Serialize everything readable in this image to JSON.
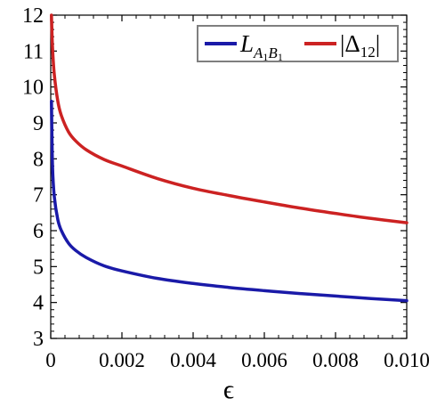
{
  "chart_data": {
    "type": "line",
    "xlabel": "ϵ",
    "ylabel": "",
    "xlim": [
      0,
      0.01
    ],
    "ylim": [
      3,
      12
    ],
    "x_ticks": [
      0,
      0.002,
      0.004,
      0.006,
      0.008,
      0.01
    ],
    "x_tick_labels": [
      "0",
      "0.002",
      "0.004",
      "0.006",
      "0.008",
      "0.010"
    ],
    "y_ticks": [
      3,
      4,
      5,
      6,
      7,
      8,
      9,
      10,
      11,
      12
    ],
    "y_tick_labels": [
      "3",
      "4",
      "5",
      "6",
      "7",
      "8",
      "9",
      "10",
      "11",
      "12"
    ],
    "grid": false,
    "legend_position": "top-right",
    "series": [
      {
        "name": "L_{A_1 B_1}",
        "color": "#1a1aa8",
        "x": [
          2e-05,
          5e-05,
          0.0001,
          0.0002,
          0.0003,
          0.0005,
          0.0007,
          0.001,
          0.0015,
          0.002,
          0.003,
          0.004,
          0.005,
          0.006,
          0.007,
          0.008,
          0.009,
          0.01
        ],
        "y": [
          9.6,
          7.8,
          6.95,
          6.3,
          6.0,
          5.65,
          5.45,
          5.25,
          5.02,
          4.88,
          4.67,
          4.53,
          4.42,
          4.33,
          4.25,
          4.18,
          4.11,
          4.05
        ]
      },
      {
        "name": "|Δ_{12}|",
        "color": "#cc2222",
        "x": [
          2e-05,
          5e-05,
          0.0001,
          0.0002,
          0.0003,
          0.0005,
          0.0007,
          0.001,
          0.0015,
          0.002,
          0.003,
          0.004,
          0.005,
          0.006,
          0.007,
          0.008,
          0.009,
          0.01
        ],
        "y": [
          12.0,
          11.1,
          10.35,
          9.6,
          9.2,
          8.75,
          8.5,
          8.25,
          7.98,
          7.8,
          7.45,
          7.18,
          6.98,
          6.8,
          6.63,
          6.48,
          6.34,
          6.22
        ]
      }
    ]
  },
  "legend": {
    "entry1": {
      "main": "L",
      "sub1": "A",
      "sub1b": "1",
      "sub2": "B",
      "sub2b": "1"
    },
    "entry2": {
      "text": "|Δ",
      "sub": "12",
      "close": "|"
    }
  }
}
